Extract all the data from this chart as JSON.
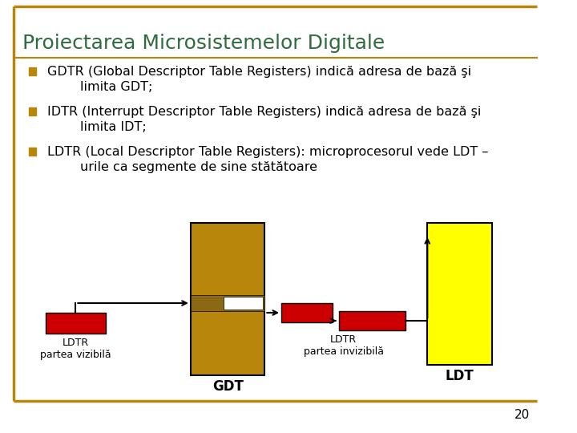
{
  "title": "Proiectarea Microsistemelor Digitale",
  "title_color": "#2E6B3E",
  "title_fontsize": 18,
  "background_color": "#FFFFFF",
  "border_color": "#B8860B",
  "bullet_color": "#B8860B",
  "bullet_text_color": "#000000",
  "bullet_fontsize": 11.5,
  "bullets": [
    "GDTR (Global Descriptor Table Registers) indică adresa de bază şi limita GDT;",
    "IDTR (Interrupt Descriptor Table Registers) indică adresa de bază şi limita IDT;",
    "LDTR (Local Descriptor Table Registers): microprocesorul vede LDT – urile ca segmente de sine stătătoare"
  ],
  "page_number": "20",
  "page_number_color": "#000000",
  "page_number_fontsize": 11,
  "gdt_color": "#B8860B",
  "gdt_stripe_color": "#8B6914",
  "ldt_color": "#FFFF00",
  "red_color": "#CC0000",
  "white_color": "#FFFFFF"
}
